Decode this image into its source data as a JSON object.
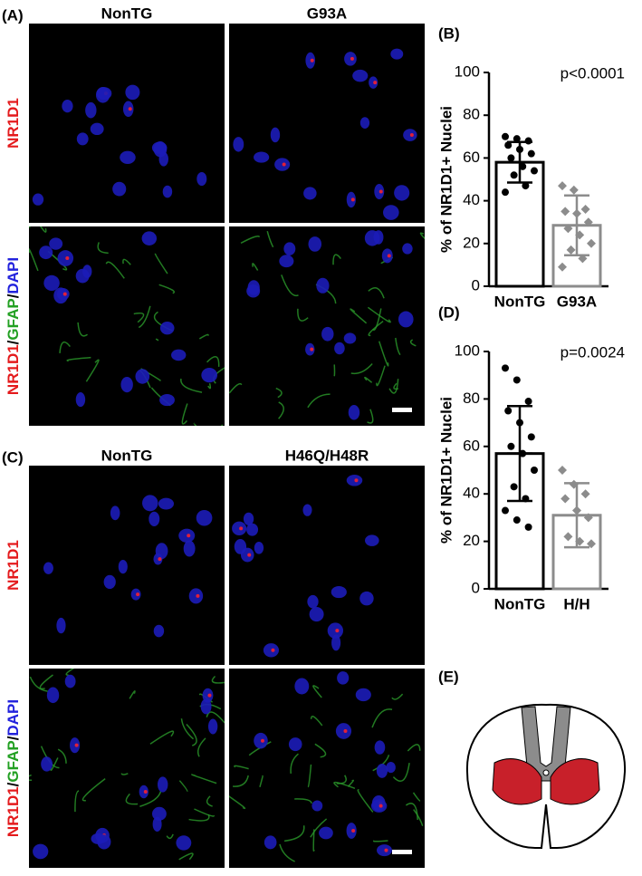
{
  "panels": [
    {
      "label": "(A)",
      "columns": [
        "NonTG",
        "G93A"
      ],
      "rows": [
        [
          "NR1D1"
        ],
        [
          "NR1D1",
          "/",
          "GFAP",
          "/",
          "DAPI"
        ]
      ]
    },
    {
      "label": "(C)",
      "columns": [
        "NonTG",
        "H46Q/H48R"
      ],
      "rows": [
        [
          "NR1D1"
        ],
        [
          "NR1D1",
          "/",
          "GFAP",
          "/",
          "DAPI"
        ]
      ]
    }
  ],
  "diagram": {
    "label": "(E)"
  },
  "chart_data": [
    {
      "type": "bar",
      "panel_label": "(B)",
      "ylabel": "% of NR1D1+ Nuclei",
      "annotation": "p<0.0001",
      "categories": [
        "NonTG",
        "G93A"
      ],
      "colors": [
        "#000000",
        "#8c8c8c"
      ],
      "markers": [
        "circle",
        "diamond"
      ],
      "values": [
        58,
        28.5
      ],
      "errors": [
        9.5,
        14
      ],
      "points": [
        [
          70,
          69,
          68,
          66,
          64,
          62,
          60,
          56,
          54,
          52,
          47,
          44
        ],
        [
          47,
          45,
          36,
          35,
          34,
          30,
          27,
          24,
          20,
          17,
          13,
          9
        ]
      ],
      "ylim": [
        0,
        100
      ],
      "yticks": [
        0,
        20,
        40,
        60,
        80,
        100
      ]
    },
    {
      "type": "bar",
      "panel_label": "(D)",
      "ylabel": "% of NR1D1+ Nuclei",
      "annotation": "p=0.0024",
      "categories": [
        "NonTG",
        "H/H"
      ],
      "colors": [
        "#000000",
        "#8c8c8c"
      ],
      "markers": [
        "circle",
        "diamond"
      ],
      "values": [
        57,
        31
      ],
      "errors": [
        20,
        13.5
      ],
      "points": [
        [
          93,
          88,
          79,
          75,
          70,
          64,
          60,
          57,
          50,
          43,
          38,
          33,
          29,
          26
        ],
        [
          50,
          44,
          40,
          38,
          33,
          30,
          22,
          20,
          19
        ]
      ],
      "ylim": [
        0,
        100
      ],
      "yticks": [
        0,
        20,
        40,
        60,
        80,
        100
      ]
    }
  ]
}
